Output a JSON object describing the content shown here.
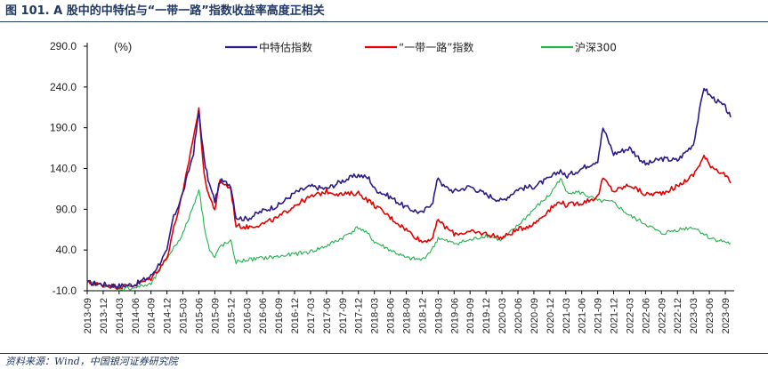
{
  "figure": {
    "title": "图 101. A 股中的中特估与“一带一路”指数收益率高度正相关",
    "source": "资料来源：Wind，中国银河证券研究院"
  },
  "chart_data": {
    "type": "line",
    "unit_label": "(%)",
    "ylim": [
      -10,
      290
    ],
    "yticks": [
      "290.0",
      "240.0",
      "190.0",
      "140.0",
      "90.0",
      "40.0",
      "-10.0"
    ],
    "ytick_values": [
      290,
      240,
      190,
      140,
      90,
      40,
      -10
    ],
    "grid": false,
    "legend_position": "top",
    "x_start": "2013-09",
    "x_end": "2023-10",
    "xticks": [
      "2013-09",
      "2013-12",
      "2014-03",
      "2014-06",
      "2014-09",
      "2014-12",
      "2015-03",
      "2015-06",
      "2015-09",
      "2015-12",
      "2016-03",
      "2016-06",
      "2016-09",
      "2016-12",
      "2017-03",
      "2017-06",
      "2017-09",
      "2017-12",
      "2018-03",
      "2018-06",
      "2018-09",
      "2018-12",
      "2019-03",
      "2019-06",
      "2019-09",
      "2019-12",
      "2020-03",
      "2020-06",
      "2020-09",
      "2020-12",
      "2021-03",
      "2021-06",
      "2021-09",
      "2021-12",
      "2022-03",
      "2022-06",
      "2022-09",
      "2022-12",
      "2023-03",
      "2023-06",
      "2023-09"
    ],
    "series": [
      {
        "name": "中特估指数",
        "color": "#2e1a87",
        "x": [
          "2013-09",
          "2013-12",
          "2014-03",
          "2014-06",
          "2014-09",
          "2014-12",
          "2015-01",
          "2015-03",
          "2015-05",
          "2015-06",
          "2015-07",
          "2015-08",
          "2015-09",
          "2015-10",
          "2015-12",
          "2016-01",
          "2016-03",
          "2016-06",
          "2016-09",
          "2016-12",
          "2017-03",
          "2017-06",
          "2017-09",
          "2017-12",
          "2018-02",
          "2018-03",
          "2018-06",
          "2018-09",
          "2018-12",
          "2019-02",
          "2019-03",
          "2019-04",
          "2019-06",
          "2019-09",
          "2019-12",
          "2020-03",
          "2020-06",
          "2020-09",
          "2020-12",
          "2021-02",
          "2021-03",
          "2021-06",
          "2021-09",
          "2021-10",
          "2021-12",
          "2022-03",
          "2022-06",
          "2022-09",
          "2022-12",
          "2023-03",
          "2023-05",
          "2023-06",
          "2023-09",
          "2023-10"
        ],
        "values": [
          0,
          -2,
          -4,
          -2,
          8,
          38,
          75,
          110,
          160,
          210,
          150,
          120,
          100,
          125,
          120,
          80,
          78,
          88,
          95,
          110,
          118,
          115,
          125,
          132,
          128,
          115,
          105,
          92,
          85,
          100,
          130,
          118,
          112,
          118,
          108,
          100,
          115,
          118,
          128,
          138,
          130,
          140,
          150,
          190,
          158,
          165,
          145,
          152,
          150,
          170,
          240,
          230,
          215,
          203
        ]
      },
      {
        "name": "“一带一路”指数",
        "color": "#e60000",
        "x": [
          "2013-09",
          "2013-12",
          "2014-03",
          "2014-06",
          "2014-09",
          "2014-12",
          "2015-01",
          "2015-03",
          "2015-05",
          "2015-06",
          "2015-07",
          "2015-08",
          "2015-09",
          "2015-10",
          "2015-12",
          "2016-01",
          "2016-03",
          "2016-06",
          "2016-09",
          "2016-12",
          "2017-03",
          "2017-06",
          "2017-09",
          "2017-12",
          "2018-02",
          "2018-03",
          "2018-06",
          "2018-09",
          "2018-12",
          "2019-02",
          "2019-03",
          "2019-04",
          "2019-06",
          "2019-09",
          "2019-12",
          "2020-03",
          "2020-06",
          "2020-09",
          "2020-12",
          "2021-02",
          "2021-03",
          "2021-06",
          "2021-09",
          "2021-10",
          "2021-12",
          "2022-03",
          "2022-06",
          "2022-09",
          "2022-12",
          "2023-03",
          "2023-05",
          "2023-06",
          "2023-09",
          "2023-10"
        ],
        "values": [
          0,
          -3,
          -5,
          -3,
          5,
          30,
          60,
          110,
          180,
          212,
          130,
          105,
          90,
          125,
          115,
          70,
          68,
          72,
          80,
          95,
          105,
          112,
          108,
          110,
          100,
          95,
          80,
          65,
          50,
          55,
          78,
          70,
          60,
          62,
          60,
          55,
          65,
          72,
          90,
          100,
          95,
          98,
          105,
          128,
          112,
          120,
          108,
          110,
          118,
          132,
          155,
          145,
          132,
          122
        ]
      },
      {
        "name": "沪深300",
        "color": "#22b24c",
        "x": [
          "2013-09",
          "2013-12",
          "2014-03",
          "2014-06",
          "2014-09",
          "2014-12",
          "2015-01",
          "2015-03",
          "2015-05",
          "2015-06",
          "2015-07",
          "2015-08",
          "2015-09",
          "2015-10",
          "2015-12",
          "2016-01",
          "2016-03",
          "2016-06",
          "2016-09",
          "2016-12",
          "2017-03",
          "2017-06",
          "2017-09",
          "2017-12",
          "2018-02",
          "2018-03",
          "2018-06",
          "2018-09",
          "2018-12",
          "2019-02",
          "2019-03",
          "2019-04",
          "2019-06",
          "2019-09",
          "2019-12",
          "2020-03",
          "2020-06",
          "2020-09",
          "2020-12",
          "2021-02",
          "2021-03",
          "2021-06",
          "2021-09",
          "2021-10",
          "2021-12",
          "2022-03",
          "2022-06",
          "2022-09",
          "2022-12",
          "2023-03",
          "2023-05",
          "2023-06",
          "2023-09",
          "2023-10"
        ],
        "values": [
          0,
          -3,
          -8,
          -6,
          -2,
          30,
          40,
          60,
          95,
          115,
          70,
          40,
          30,
          45,
          50,
          25,
          28,
          30,
          32,
          35,
          38,
          45,
          55,
          68,
          58,
          50,
          40,
          30,
          28,
          42,
          55,
          52,
          48,
          52,
          58,
          52,
          70,
          90,
          108,
          128,
          112,
          110,
          100,
          100,
          98,
          82,
          72,
          60,
          65,
          68,
          60,
          55,
          50,
          48
        ]
      }
    ]
  }
}
